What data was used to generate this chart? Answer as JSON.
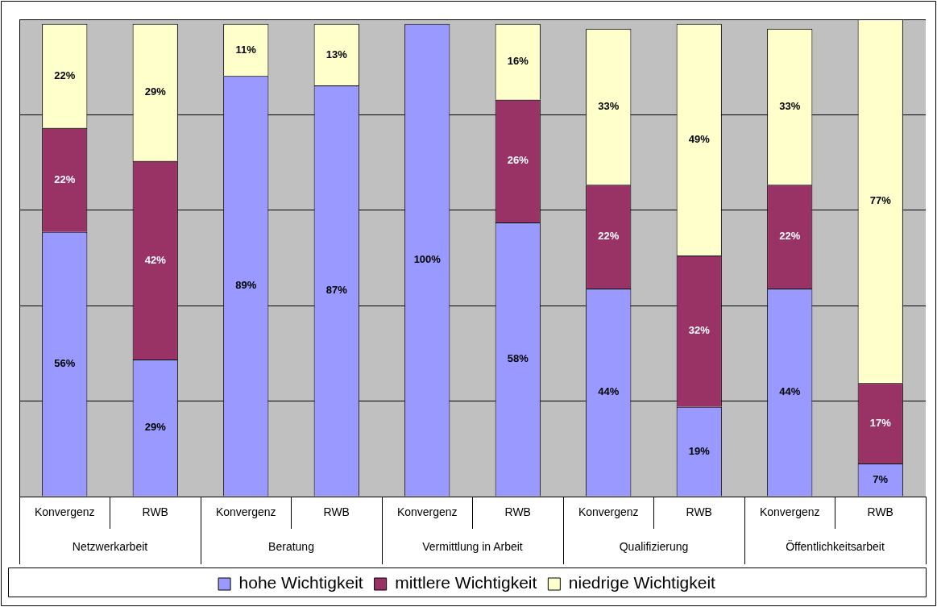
{
  "chart_data": {
    "type": "bar",
    "stacked": true,
    "grid": "y",
    "legend": "bottom",
    "categories": [
      "Konvergenz",
      "RWB",
      "Konvergenz",
      "RWB",
      "Konvergenz",
      "RWB",
      "Konvergenz",
      "RWB",
      "Konvergenz",
      "RWB"
    ],
    "annotations": [
      "Netzwerkarbeit",
      "Beratung",
      "Vermittlung in Arbeit",
      "Qualifizierung",
      "Öffentlichkeitsarbeit"
    ],
    "series": [
      {
        "name": "hohe Wichtigkeit",
        "color": "#9999ff",
        "values": [
          56,
          29,
          89,
          87,
          100,
          58,
          44,
          19,
          44,
          7
        ],
        "value_labels": [
          "56%",
          "29%",
          "89%",
          "87%",
          "100%",
          "58%",
          "44%",
          "19%",
          "44%",
          "7%"
        ]
      },
      {
        "name": "mittlere Wichtigkeit",
        "color": "#993366",
        "values": [
          22,
          42,
          null,
          null,
          null,
          26,
          22,
          32,
          22,
          17
        ],
        "value_labels": [
          "22%",
          "42%",
          null,
          null,
          null,
          "26%",
          "22%",
          "32%",
          "22%",
          "17%"
        ]
      },
      {
        "name": "niedrige Wichtigkeit",
        "color": "#ffffcc",
        "values": [
          22,
          29,
          11,
          13,
          null,
          16,
          33,
          49,
          33,
          77
        ],
        "value_labels": [
          "22%",
          "29%",
          "11%",
          "13%",
          null,
          "16%",
          "33%",
          "49%",
          "33%",
          "77%"
        ]
      }
    ]
  }
}
